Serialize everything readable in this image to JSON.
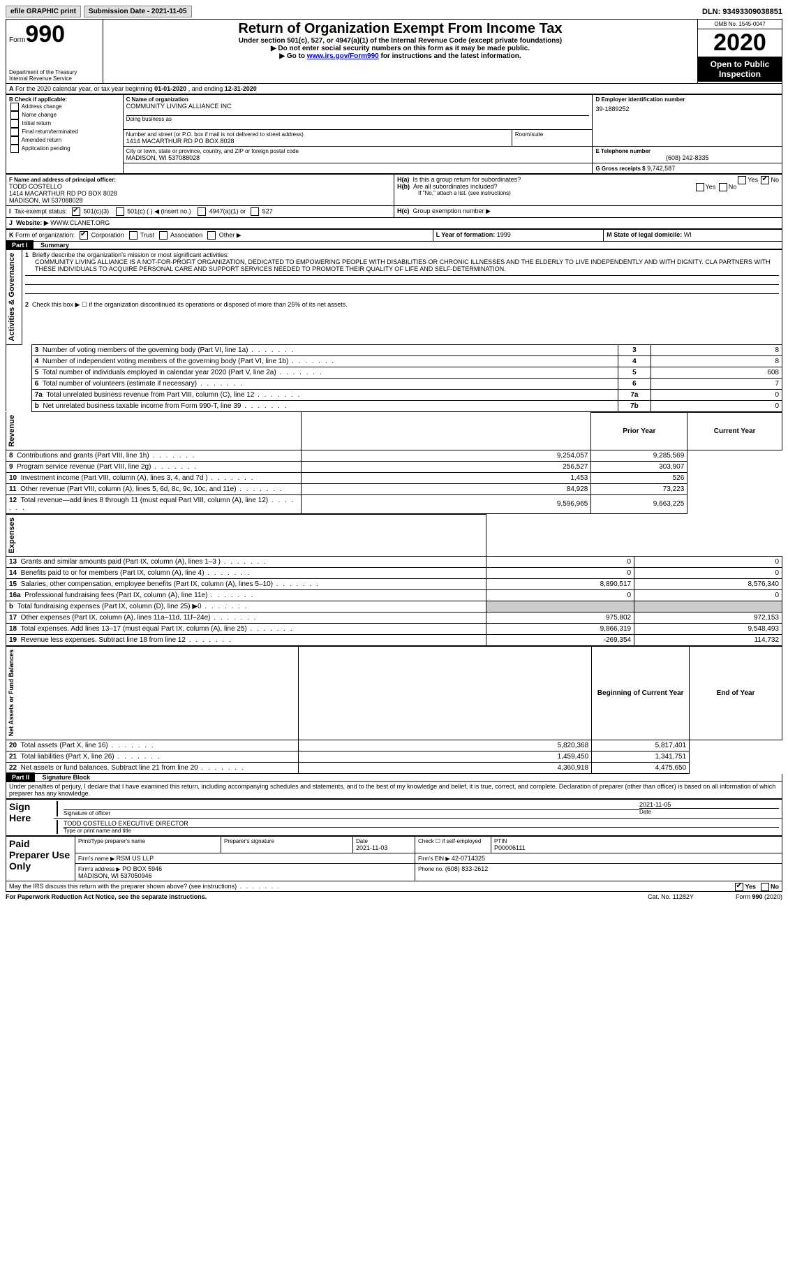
{
  "topbar": {
    "efile": "efile GRAPHIC print",
    "subdate_label": "Submission Date - ",
    "subdate": "2021-11-05",
    "dln_label": "DLN: ",
    "dln": "93493309038851"
  },
  "header": {
    "form_label": "Form",
    "form_no": "990",
    "dept": "Department of the Treasury\nInternal Revenue Service",
    "title": "Return of Organization Exempt From Income Tax",
    "sub1": "Under section 501(c), 527, or 4947(a)(1) of the Internal Revenue Code (except private foundations)",
    "sub2": "▶ Do not enter social security numbers on this form as it may be made public.",
    "sub3_pre": "▶ Go to ",
    "sub3_link": "www.irs.gov/Form990",
    "sub3_post": " for instructions and the latest information.",
    "omb": "OMB No. 1545-0047",
    "year": "2020",
    "openpub": "Open to Public Inspection"
  },
  "A": {
    "text": "For the 2020 calendar year, or tax year beginning ",
    "begin": "01-01-2020",
    "mid": " , and ending ",
    "end": "12-31-2020"
  },
  "B": {
    "label": "B Check if applicable:",
    "items": [
      "Address change",
      "Name change",
      "Initial return",
      "Final return/terminated",
      "Amended return",
      "Application pending"
    ]
  },
  "C": {
    "label": "C Name of organization",
    "name": "COMMUNITY LIVING ALLIANCE INC",
    "dba_label": "Doing business as",
    "addr_label": "Number and street (or P.O. box if mail is not delivered to street address)",
    "room_label": "Room/suite",
    "addr": "1414 MACARTHUR RD PO BOX 8028",
    "city_label": "City or town, state or province, country, and ZIP or foreign postal code",
    "city": "MADISON, WI  537088028"
  },
  "D": {
    "label": "D Employer identification number",
    "val": "39-1889252"
  },
  "E": {
    "label": "E Telephone number",
    "val": "(608) 242-8335"
  },
  "G": {
    "label": "G Gross receipts $",
    "val": "9,742,587"
  },
  "F": {
    "label": "F Name and address of principal officer:",
    "name": "TODD COSTELLO",
    "addr": "1414 MACARTHUR RD PO BOX 8028\nMADISON, WI  537088028"
  },
  "H": {
    "a": "Is this a group return for subordinates?",
    "b": "Are all subordinates included?",
    "bnote": "If \"No,\" attach a list. (see instructions)",
    "c": "Group exemption number ▶"
  },
  "I": {
    "label": "Tax-exempt status:",
    "opts": [
      "501(c)(3)",
      "501(c) (  ) ◀ (insert no.)",
      "4947(a)(1) or",
      "527"
    ]
  },
  "J": {
    "label": "Website: ▶",
    "val": "WWW.CLANET.ORG"
  },
  "K": {
    "label": "Form of organization:",
    "opts": [
      "Corporation",
      "Trust",
      "Association",
      "Other ▶"
    ]
  },
  "L": {
    "label": "L Year of formation: ",
    "val": "1999"
  },
  "M": {
    "label": "M State of legal domicile: ",
    "val": "WI"
  },
  "part1": {
    "label": "Part I",
    "title": "Summary"
  },
  "mission_label": "Briefly describe the organization's mission or most significant activities:",
  "mission": "COMMUNITY LIVING ALLIANCE IS A NOT-FOR-PROFIT ORGANIZATION, DEDICATED TO EMPOWERING PEOPLE WITH DISABILITIES OR CHRONIC ILLNESSES AND THE ELDERLY TO LIVE INDEPENDENTLY AND WITH DIGNITY. CLA PARTNERS WITH THESE INDIVIDUALS TO ACQUIRE PERSONAL CARE AND SUPPORT SERVICES NEEDED TO PROMOTE THEIR QUALITY OF LIFE AND SELF-DETERMINATION.",
  "line2": "Check this box ▶ ☐  if the organization discontinued its operations or disposed of more than 25% of its net assets.",
  "gov_lines": [
    {
      "n": "3",
      "t": "Number of voting members of the governing body (Part VI, line 1a)",
      "box": "3",
      "v": "8"
    },
    {
      "n": "4",
      "t": "Number of independent voting members of the governing body (Part VI, line 1b)",
      "box": "4",
      "v": "8"
    },
    {
      "n": "5",
      "t": "Total number of individuals employed in calendar year 2020 (Part V, line 2a)",
      "box": "5",
      "v": "608"
    },
    {
      "n": "6",
      "t": "Total number of volunteers (estimate if necessary)",
      "box": "6",
      "v": "7"
    },
    {
      "n": "7a",
      "t": "Total unrelated business revenue from Part VIII, column (C), line 12",
      "box": "7a",
      "v": "0"
    },
    {
      "n": "b",
      "t": "Net unrelated business taxable income from Form 990-T, line 39",
      "box": "7b",
      "v": "0"
    }
  ],
  "rev_head": {
    "c1": "Prior Year",
    "c2": "Current Year"
  },
  "revenue": [
    {
      "n": "8",
      "t": "Contributions and grants (Part VIII, line 1h)",
      "p": "9,254,057",
      "c": "9,285,569"
    },
    {
      "n": "9",
      "t": "Program service revenue (Part VIII, line 2g)",
      "p": "256,527",
      "c": "303,907"
    },
    {
      "n": "10",
      "t": "Investment income (Part VIII, column (A), lines 3, 4, and 7d )",
      "p": "1,453",
      "c": "526"
    },
    {
      "n": "11",
      "t": "Other revenue (Part VIII, column (A), lines 5, 6d, 8c, 9c, 10c, and 11e)",
      "p": "84,928",
      "c": "73,223"
    },
    {
      "n": "12",
      "t": "Total revenue—add lines 8 through 11 (must equal Part VIII, column (A), line 12)",
      "p": "9,596,965",
      "c": "9,663,225"
    }
  ],
  "expenses": [
    {
      "n": "13",
      "t": "Grants and similar amounts paid (Part IX, column (A), lines 1–3 )",
      "p": "0",
      "c": "0"
    },
    {
      "n": "14",
      "t": "Benefits paid to or for members (Part IX, column (A), line 4)",
      "p": "0",
      "c": "0"
    },
    {
      "n": "15",
      "t": "Salaries, other compensation, employee benefits (Part IX, column (A), lines 5–10)",
      "p": "8,890,517",
      "c": "8,576,340"
    },
    {
      "n": "16a",
      "t": "Professional fundraising fees (Part IX, column (A), line 11e)",
      "p": "0",
      "c": "0"
    },
    {
      "n": "b",
      "t": "Total fundraising expenses (Part IX, column (D), line 25) ▶0",
      "p": "",
      "c": "",
      "gray": true
    },
    {
      "n": "17",
      "t": "Other expenses (Part IX, column (A), lines 11a–11d, 11f–24e)",
      "p": "975,802",
      "c": "972,153"
    },
    {
      "n": "18",
      "t": "Total expenses. Add lines 13–17 (must equal Part IX, column (A), line 25)",
      "p": "9,866,319",
      "c": "9,548,493"
    },
    {
      "n": "19",
      "t": "Revenue less expenses. Subtract line 18 from line 12",
      "p": "-269,354",
      "c": "114,732"
    }
  ],
  "na_head": {
    "c1": "Beginning of Current Year",
    "c2": "End of Year"
  },
  "netassets": [
    {
      "n": "20",
      "t": "Total assets (Part X, line 16)",
      "p": "5,820,368",
      "c": "5,817,401"
    },
    {
      "n": "21",
      "t": "Total liabilities (Part X, line 26)",
      "p": "1,459,450",
      "c": "1,341,751"
    },
    {
      "n": "22",
      "t": "Net assets or fund balances. Subtract line 21 from line 20",
      "p": "4,360,918",
      "c": "4,475,650"
    }
  ],
  "part2": {
    "label": "Part II",
    "title": "Signature Block"
  },
  "perjury": "Under penalties of perjury, I declare that I have examined this return, including accompanying schedules and statements, and to the best of my knowledge and belief, it is true, correct, and complete. Declaration of preparer (other than officer) is based on all information of which preparer has any knowledge.",
  "sign": {
    "here": "Sign Here",
    "sig": "Signature of officer",
    "date": "2021-11-05",
    "date_l": "Date",
    "name": "TODD COSTELLO  EXECUTIVE DIRECTOR",
    "name_l": "Type or print name and title"
  },
  "paid": {
    "label": "Paid Preparer Use Only",
    "h": [
      "Print/Type preparer's name",
      "Preparer's signature",
      "Date",
      "Check ☐ if self-employed",
      "PTIN"
    ],
    "date": "2021-11-03",
    "ptin": "P00006111",
    "firm_l": "Firm's name   ▶",
    "firm": "RSM US LLP",
    "ein_l": "Firm's EIN ▶",
    "ein": "42-0714325",
    "addr_l": "Firm's address ▶",
    "addr": "PO BOX 5946\n                          MADISON, WI  537050946",
    "phone_l": "Phone no. ",
    "phone": "(608) 833-2612"
  },
  "may": "May the IRS discuss this return with the preparer shown above? (see instructions)",
  "footer": {
    "l": "For Paperwork Reduction Act Notice, see the separate instructions.",
    "c": "Cat. No. 11282Y",
    "r": "Form 990 (2020)"
  }
}
